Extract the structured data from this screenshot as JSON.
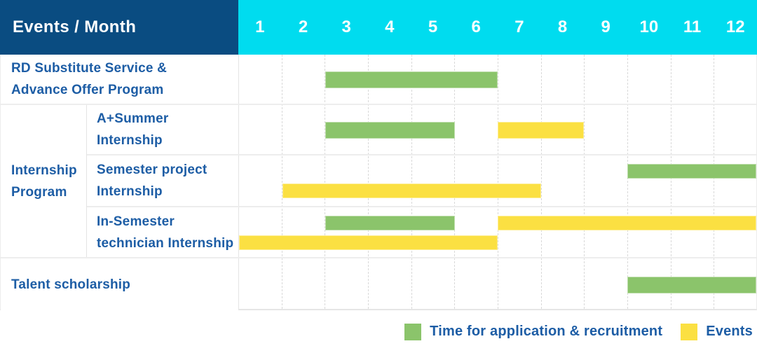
{
  "colors": {
    "header_navy": "#0A4C81",
    "month_cyan": "#00DCEF",
    "bar_green": "#8BC46B",
    "bar_yellow": "#FBE042",
    "label_blue": "#1D5DA5"
  },
  "header": {
    "events_month_label": "Events / Month"
  },
  "chart_data": {
    "type": "bar",
    "subtype": "gantt-schedule",
    "title": "Events / Month",
    "x_axis": {
      "label": "Month",
      "range": [
        1,
        12
      ],
      "ticks": [
        "1",
        "2",
        "3",
        "4",
        "5",
        "6",
        "7",
        "8",
        "9",
        "10",
        "11",
        "12"
      ]
    },
    "legend": [
      {
        "name": "Time for application & recruitment",
        "color": "#8BC46B"
      },
      {
        "name": "Events",
        "color": "#FBE042"
      }
    ],
    "legend_position": "bottom-right",
    "grid": "dashed-vertical-month-lines",
    "groups": [
      {
        "label": "Internship Program",
        "label_lines": [
          "Internship",
          "Program"
        ],
        "row_indexes": [
          1,
          2,
          3
        ]
      }
    ],
    "rows": [
      {
        "label": "RD Substitute Service & Advance Offer Program",
        "label_lines": [
          "RD Substitute Service &",
          "Advance Offer Program"
        ],
        "bars": [
          {
            "series": "Time for application & recruitment",
            "start_month": 3,
            "end_month": 6,
            "line": 0
          }
        ]
      },
      {
        "label": "A+Summer Internship",
        "label_lines": [
          "A+Summer",
          "Internship"
        ],
        "bars": [
          {
            "series": "Time for application & recruitment",
            "start_month": 3,
            "end_month": 5,
            "line": 0
          },
          {
            "series": "Events",
            "start_month": 7,
            "end_month": 8,
            "line": 0
          }
        ]
      },
      {
        "label": "Semester project Internship",
        "label_lines": [
          "Semester project",
          "Internship"
        ],
        "bars": [
          {
            "series": "Time for application & recruitment",
            "start_month": 10,
            "end_month": 12,
            "line": 0
          },
          {
            "series": "Events",
            "start_month": 2,
            "end_month": 7,
            "line": 1
          }
        ]
      },
      {
        "label": "In-Semester technician Internship",
        "label_lines": [
          "In-Semester",
          "technician Internship"
        ],
        "bars": [
          {
            "series": "Time for application & recruitment",
            "start_month": 3,
            "end_month": 5,
            "line": 0
          },
          {
            "series": "Events",
            "start_month": 7,
            "end_month": 12,
            "line": 0
          },
          {
            "series": "Events",
            "start_month": 1,
            "end_month": 6,
            "line": 1
          }
        ]
      },
      {
        "label": "Talent scholarship",
        "label_lines": [
          "Talent scholarship"
        ],
        "bars": [
          {
            "series": "Time for application & recruitment",
            "start_month": 10,
            "end_month": 12,
            "line": 0
          }
        ]
      }
    ]
  }
}
